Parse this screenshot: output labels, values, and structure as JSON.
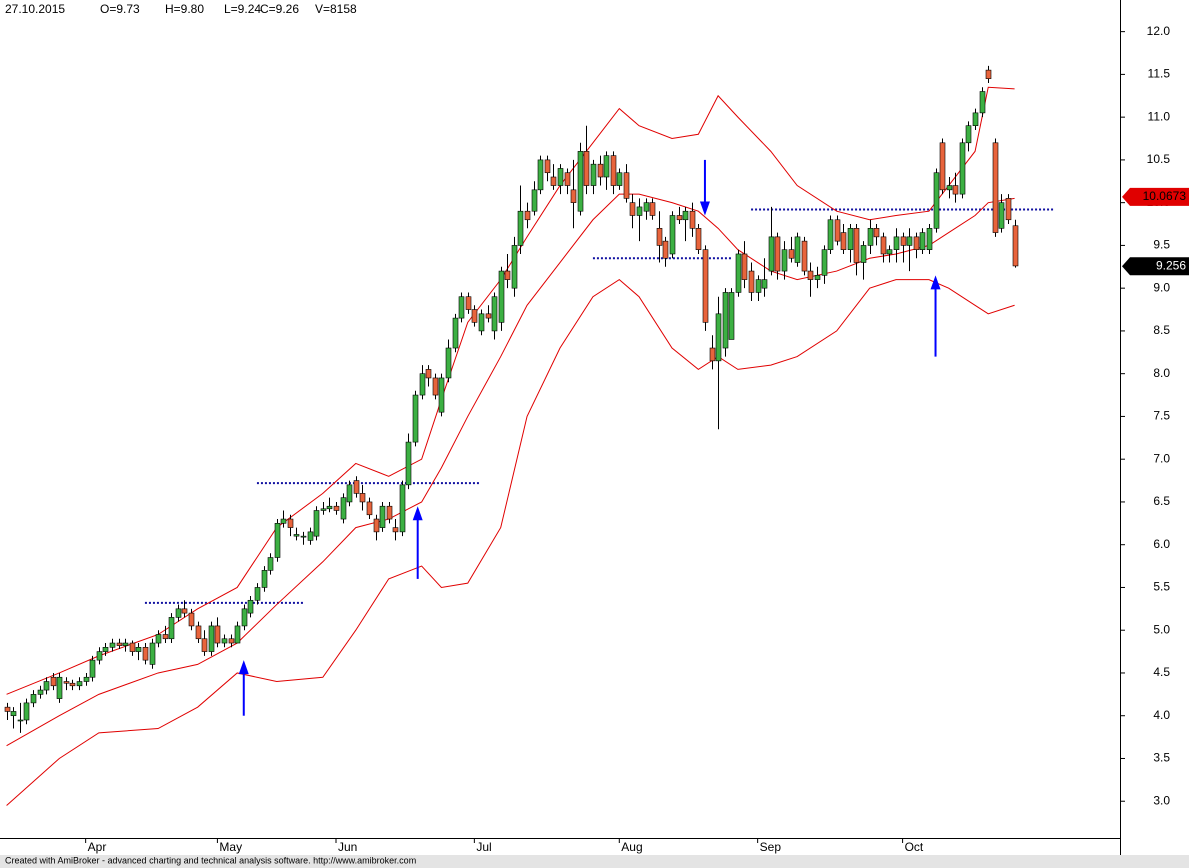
{
  "chart_data": {
    "type": "candlestick",
    "header": {
      "date": "27.10.2015",
      "open": "O=9.73",
      "high": "H=9.80",
      "low": "L=9.24",
      "close": "C=9.26",
      "volume": "V=8158"
    },
    "footer": "Created with AmiBroker - advanced charting and technical analysis software. http://www.amibroker.com",
    "up_color": "#3cb043",
    "down_color": "#e8643c",
    "xlim": [
      -1,
      169
    ],
    "xticks": [
      {
        "value": 12,
        "label": "Apr"
      },
      {
        "value": 32,
        "label": "May"
      },
      {
        "value": 50,
        "label": "Jun"
      },
      {
        "value": 71,
        "label": "Jul"
      },
      {
        "value": 93,
        "label": "Aug"
      },
      {
        "value": 114,
        "label": "Sep"
      },
      {
        "value": 136,
        "label": "Oct"
      }
    ],
    "ylim": [
      2.57,
      12.37
    ],
    "yticks": [
      {
        "value": 3,
        "label": "3.0"
      },
      {
        "value": 3.5,
        "label": "3.5"
      },
      {
        "value": 4,
        "label": "4.0"
      },
      {
        "value": 4.5,
        "label": "4.5"
      },
      {
        "value": 5,
        "label": "5.0"
      },
      {
        "value": 5.5,
        "label": "5.5"
      },
      {
        "value": 6,
        "label": "6.0"
      },
      {
        "value": 6.5,
        "label": "6.5"
      },
      {
        "value": 7,
        "label": "7.0"
      },
      {
        "value": 7.5,
        "label": "7.5"
      },
      {
        "value": 8,
        "label": "8.0"
      },
      {
        "value": 8.5,
        "label": "8.5"
      },
      {
        "value": 9,
        "label": "9.0"
      },
      {
        "value": 9.5,
        "label": "9.5"
      },
      {
        "value": 10,
        "label": "10.0"
      },
      {
        "value": 10.5,
        "label": "10.5"
      },
      {
        "value": 11,
        "label": "11.0"
      },
      {
        "value": 11.5,
        "label": "11.5"
      },
      {
        "value": 12,
        "label": "12.0"
      }
    ],
    "candles": [
      [
        4.1,
        4.15,
        3.95,
        4.05
      ],
      [
        4.0,
        4.1,
        3.85,
        4.05
      ],
      [
        3.95,
        4.15,
        3.8,
        3.95
      ],
      [
        3.95,
        4.2,
        3.9,
        4.15
      ],
      [
        4.15,
        4.3,
        4.1,
        4.25
      ],
      [
        4.25,
        4.35,
        4.2,
        4.3
      ],
      [
        4.3,
        4.45,
        4.25,
        4.4
      ],
      [
        4.45,
        4.5,
        4.3,
        4.35
      ],
      [
        4.2,
        4.5,
        4.15,
        4.45
      ],
      [
        4.4,
        4.45,
        4.3,
        4.38
      ],
      [
        4.38,
        4.42,
        4.3,
        4.35
      ],
      [
        4.35,
        4.45,
        4.3,
        4.4
      ],
      [
        4.4,
        4.5,
        4.35,
        4.45
      ],
      [
        4.45,
        4.7,
        4.4,
        4.65
      ],
      [
        4.65,
        4.8,
        4.6,
        4.75
      ],
      [
        4.75,
        4.85,
        4.7,
        4.8
      ],
      [
        4.8,
        4.9,
        4.75,
        4.85
      ],
      [
        4.85,
        4.9,
        4.78,
        4.82
      ],
      [
        4.82,
        4.9,
        4.75,
        4.85
      ],
      [
        4.85,
        4.88,
        4.7,
        4.75
      ],
      [
        4.75,
        4.85,
        4.65,
        4.8
      ],
      [
        4.8,
        4.85,
        4.6,
        4.65
      ],
      [
        4.6,
        4.9,
        4.55,
        4.85
      ],
      [
        4.85,
        5.0,
        4.8,
        4.95
      ],
      [
        4.95,
        5.05,
        4.85,
        4.9
      ],
      [
        4.9,
        5.2,
        4.85,
        5.15
      ],
      [
        5.15,
        5.3,
        5.1,
        5.25
      ],
      [
        5.25,
        5.35,
        5.15,
        5.2
      ],
      [
        5.2,
        5.25,
        5.0,
        5.05
      ],
      [
        5.05,
        5.1,
        4.85,
        4.9
      ],
      [
        4.9,
        5.0,
        4.7,
        4.75
      ],
      [
        4.75,
        5.1,
        4.7,
        5.05
      ],
      [
        5.05,
        5.15,
        4.8,
        4.85
      ],
      [
        4.85,
        4.95,
        4.8,
        4.9
      ],
      [
        4.9,
        4.95,
        4.8,
        4.85
      ],
      [
        4.85,
        5.1,
        4.85,
        5.05
      ],
      [
        5.05,
        5.3,
        5.0,
        5.25
      ],
      [
        5.2,
        5.4,
        5.15,
        5.35
      ],
      [
        5.35,
        5.55,
        5.3,
        5.5
      ],
      [
        5.5,
        5.75,
        5.45,
        5.7
      ],
      [
        5.7,
        5.9,
        5.65,
        5.85
      ],
      [
        5.85,
        6.3,
        5.8,
        6.25
      ],
      [
        6.25,
        6.4,
        6.2,
        6.3
      ],
      [
        6.3,
        6.35,
        6.1,
        6.2
      ],
      [
        6.1,
        6.2,
        6.05,
        6.12
      ],
      [
        6.1,
        6.15,
        6.0,
        6.1
      ],
      [
        6.05,
        6.2,
        6.0,
        6.15
      ],
      [
        6.1,
        6.45,
        6.05,
        6.4
      ],
      [
        6.4,
        6.5,
        6.35,
        6.42
      ],
      [
        6.42,
        6.55,
        6.38,
        6.45
      ],
      [
        6.45,
        6.5,
        6.35,
        6.4
      ],
      [
        6.3,
        6.6,
        6.25,
        6.55
      ],
      [
        6.5,
        6.75,
        6.45,
        6.7
      ],
      [
        6.75,
        6.8,
        6.55,
        6.6
      ],
      [
        6.6,
        6.7,
        6.4,
        6.5
      ],
      [
        6.5,
        6.55,
        6.3,
        6.35
      ],
      [
        6.3,
        6.35,
        6.05,
        6.15
      ],
      [
        6.2,
        6.5,
        6.15,
        6.45
      ],
      [
        6.45,
        6.5,
        6.25,
        6.3
      ],
      [
        6.2,
        6.3,
        6.05,
        6.15
      ],
      [
        6.15,
        6.75,
        6.1,
        6.7
      ],
      [
        6.7,
        7.3,
        6.65,
        7.2
      ],
      [
        7.2,
        7.8,
        7.15,
        7.75
      ],
      [
        7.75,
        8.1,
        7.7,
        8.0
      ],
      [
        8.05,
        8.1,
        7.85,
        7.95
      ],
      [
        7.95,
        8.0,
        7.7,
        7.75
      ],
      [
        7.55,
        8.0,
        7.5,
        7.95
      ],
      [
        7.95,
        8.4,
        7.9,
        8.3
      ],
      [
        8.3,
        8.7,
        8.25,
        8.65
      ],
      [
        8.65,
        8.95,
        8.6,
        8.9
      ],
      [
        8.9,
        8.95,
        8.7,
        8.75
      ],
      [
        8.75,
        8.8,
        8.55,
        8.6
      ],
      [
        8.5,
        8.75,
        8.45,
        8.7
      ],
      [
        8.7,
        8.8,
        8.6,
        8.65
      ],
      [
        8.5,
        8.95,
        8.4,
        8.9
      ],
      [
        8.6,
        9.25,
        8.5,
        9.2
      ],
      [
        9.2,
        9.4,
        9.0,
        9.1
      ],
      [
        9.0,
        9.6,
        8.9,
        9.5
      ],
      [
        9.5,
        10.2,
        9.4,
        9.9
      ],
      [
        9.9,
        10.0,
        9.7,
        9.8
      ],
      [
        9.9,
        10.25,
        9.85,
        10.15
      ],
      [
        10.15,
        10.55,
        10.1,
        10.5
      ],
      [
        10.5,
        10.55,
        10.25,
        10.35
      ],
      [
        10.3,
        10.45,
        10.15,
        10.2
      ],
      [
        10.2,
        10.45,
        10.1,
        10.4
      ],
      [
        10.35,
        10.4,
        10.1,
        10.2
      ],
      [
        10.15,
        10.5,
        9.7,
        10.0
      ],
      [
        9.9,
        10.7,
        9.85,
        10.6
      ],
      [
        10.6,
        10.9,
        10.1,
        10.2
      ],
      [
        10.2,
        10.5,
        10.1,
        10.45
      ],
      [
        10.45,
        10.55,
        10.2,
        10.3
      ],
      [
        10.3,
        10.6,
        10.15,
        10.55
      ],
      [
        10.55,
        10.6,
        10.1,
        10.2
      ],
      [
        10.2,
        10.4,
        10.15,
        10.35
      ],
      [
        10.35,
        10.45,
        10.0,
        10.05
      ],
      [
        10.0,
        10.1,
        9.7,
        9.85
      ],
      [
        9.85,
        10.05,
        9.55,
        9.95
      ],
      [
        9.9,
        10.05,
        9.8,
        10.0
      ],
      [
        10.0,
        10.05,
        9.8,
        9.85
      ],
      [
        9.7,
        9.9,
        9.3,
        9.5
      ],
      [
        9.55,
        9.6,
        9.25,
        9.35
      ],
      [
        9.4,
        9.9,
        9.35,
        9.85
      ],
      [
        9.85,
        9.95,
        9.75,
        9.8
      ],
      [
        9.8,
        9.95,
        9.55,
        9.9
      ],
      [
        9.9,
        10.0,
        9.6,
        9.7
      ],
      [
        9.7,
        9.75,
        9.4,
        9.45
      ],
      [
        9.45,
        9.5,
        8.5,
        8.6
      ],
      [
        8.3,
        8.45,
        8.05,
        8.15
      ],
      [
        8.15,
        8.9,
        7.35,
        8.7
      ],
      [
        8.3,
        9.0,
        8.2,
        8.95
      ],
      [
        8.4,
        9.0,
        8.4,
        8.95
      ],
      [
        8.95,
        9.45,
        8.9,
        9.4
      ],
      [
        9.4,
        9.55,
        9.0,
        9.1
      ],
      [
        9.2,
        9.3,
        8.85,
        8.95
      ],
      [
        8.95,
        9.15,
        8.85,
        9.1
      ],
      [
        9.0,
        9.35,
        8.9,
        9.1
      ],
      [
        9.2,
        9.95,
        9.15,
        9.6
      ],
      [
        9.6,
        9.65,
        9.1,
        9.2
      ],
      [
        9.2,
        9.55,
        9.1,
        9.45
      ],
      [
        9.45,
        9.6,
        9.3,
        9.35
      ],
      [
        9.3,
        9.65,
        9.25,
        9.6
      ],
      [
        9.55,
        9.6,
        9.15,
        9.2
      ],
      [
        9.2,
        9.3,
        8.9,
        9.1
      ],
      [
        9.1,
        9.25,
        9.0,
        9.15
      ],
      [
        9.15,
        9.5,
        9.05,
        9.45
      ],
      [
        9.45,
        9.85,
        9.4,
        9.8
      ],
      [
        9.8,
        9.85,
        9.5,
        9.55
      ],
      [
        9.65,
        9.75,
        9.4,
        9.45
      ],
      [
        9.45,
        9.75,
        9.3,
        9.7
      ],
      [
        9.7,
        9.75,
        9.15,
        9.3
      ],
      [
        9.3,
        9.55,
        9.1,
        9.5
      ],
      [
        9.5,
        9.8,
        9.4,
        9.7
      ],
      [
        9.7,
        9.75,
        9.5,
        9.6
      ],
      [
        9.6,
        9.65,
        9.3,
        9.4
      ],
      [
        9.4,
        9.5,
        9.3,
        9.45
      ],
      [
        9.45,
        9.7,
        9.3,
        9.6
      ],
      [
        9.6,
        9.65,
        9.3,
        9.5
      ],
      [
        9.5,
        9.7,
        9.2,
        9.6
      ],
      [
        9.6,
        9.65,
        9.35,
        9.45
      ],
      [
        9.45,
        9.7,
        9.4,
        9.65
      ],
      [
        9.45,
        9.75,
        9.4,
        9.7
      ],
      [
        9.7,
        10.4,
        9.65,
        10.35
      ],
      [
        10.7,
        10.75,
        10.1,
        10.15
      ],
      [
        10.15,
        10.3,
        10.05,
        10.2
      ],
      [
        10.2,
        10.35,
        10.0,
        10.1
      ],
      [
        10.1,
        10.75,
        10.05,
        10.7
      ],
      [
        10.7,
        10.95,
        10.6,
        10.9
      ],
      [
        10.9,
        11.1,
        10.85,
        11.05
      ],
      [
        11.05,
        11.35,
        11.0,
        11.3
      ],
      [
        11.55,
        11.6,
        11.4,
        11.45
      ],
      [
        10.7,
        10.75,
        9.6,
        9.65
      ],
      [
        9.7,
        10.1,
        9.65,
        10.0
      ],
      [
        10.05,
        10.1,
        9.75,
        9.8
      ],
      [
        9.73,
        9.8,
        9.24,
        9.26
      ]
    ],
    "band_color": "#e00000",
    "band_x": [
      0,
      8,
      14,
      23,
      29,
      35,
      41,
      48,
      53,
      58,
      63,
      66,
      70,
      75,
      79,
      84,
      89,
      93,
      96,
      101,
      105,
      108,
      111,
      116,
      120,
      126,
      131,
      135,
      140,
      143,
      147,
      149,
      153
    ],
    "bands": [
      {
        "values": [
          4.25,
          4.5,
          4.7,
          4.95,
          5.25,
          5.5,
          6.2,
          6.6,
          6.95,
          6.8,
          7.0,
          7.7,
          8.6,
          9.1,
          9.6,
          10.2,
          10.7,
          11.1,
          10.9,
          10.75,
          10.8,
          11.25,
          11.0,
          10.6,
          10.2,
          9.9,
          9.8,
          9.85,
          9.9,
          10.2,
          10.6,
          11.35,
          11.33
        ]
      },
      {
        "values": [
          3.65,
          4.0,
          4.25,
          4.5,
          4.6,
          4.85,
          5.3,
          5.8,
          6.2,
          6.3,
          6.5,
          6.9,
          7.5,
          8.2,
          8.8,
          9.3,
          9.8,
          10.1,
          10.1,
          10.0,
          9.9,
          9.7,
          9.45,
          9.2,
          9.1,
          9.2,
          9.35,
          9.4,
          9.5,
          9.65,
          9.85,
          10.0,
          10.05
        ]
      },
      {
        "values": [
          2.95,
          3.5,
          3.8,
          3.85,
          4.1,
          4.5,
          4.4,
          4.45,
          5.0,
          5.6,
          5.75,
          5.5,
          5.55,
          6.2,
          7.5,
          8.3,
          8.9,
          9.1,
          8.9,
          8.3,
          8.05,
          8.2,
          8.05,
          8.1,
          8.2,
          8.5,
          9.0,
          9.1,
          9.1,
          9.0,
          8.8,
          8.7,
          8.8
        ]
      }
    ],
    "level_color": "#1010a0",
    "levels": [
      {
        "value": 5.32,
        "from": 21,
        "to": 45
      },
      {
        "value": 6.72,
        "from": 38,
        "to": 72
      },
      {
        "value": 9.35,
        "from": 89,
        "to": 110
      },
      {
        "value": 9.92,
        "from": 113,
        "to": 159
      }
    ],
    "arrow_color": "#0000ff",
    "arrows": [
      {
        "x": 36,
        "from": 4.0,
        "to": 4.65
      },
      {
        "x": 62.4,
        "from": 5.6,
        "to": 6.45
      },
      {
        "x": 106,
        "from": 10.5,
        "to": 9.85
      },
      {
        "x": 141,
        "from": 8.2,
        "to": 9.15
      }
    ],
    "price_labels": [
      {
        "value": 10.0673,
        "color": "#e00000",
        "text_color": "#000000"
      },
      {
        "value": 9.256,
        "color": "#000000",
        "text_color": "#ffffff"
      }
    ]
  }
}
